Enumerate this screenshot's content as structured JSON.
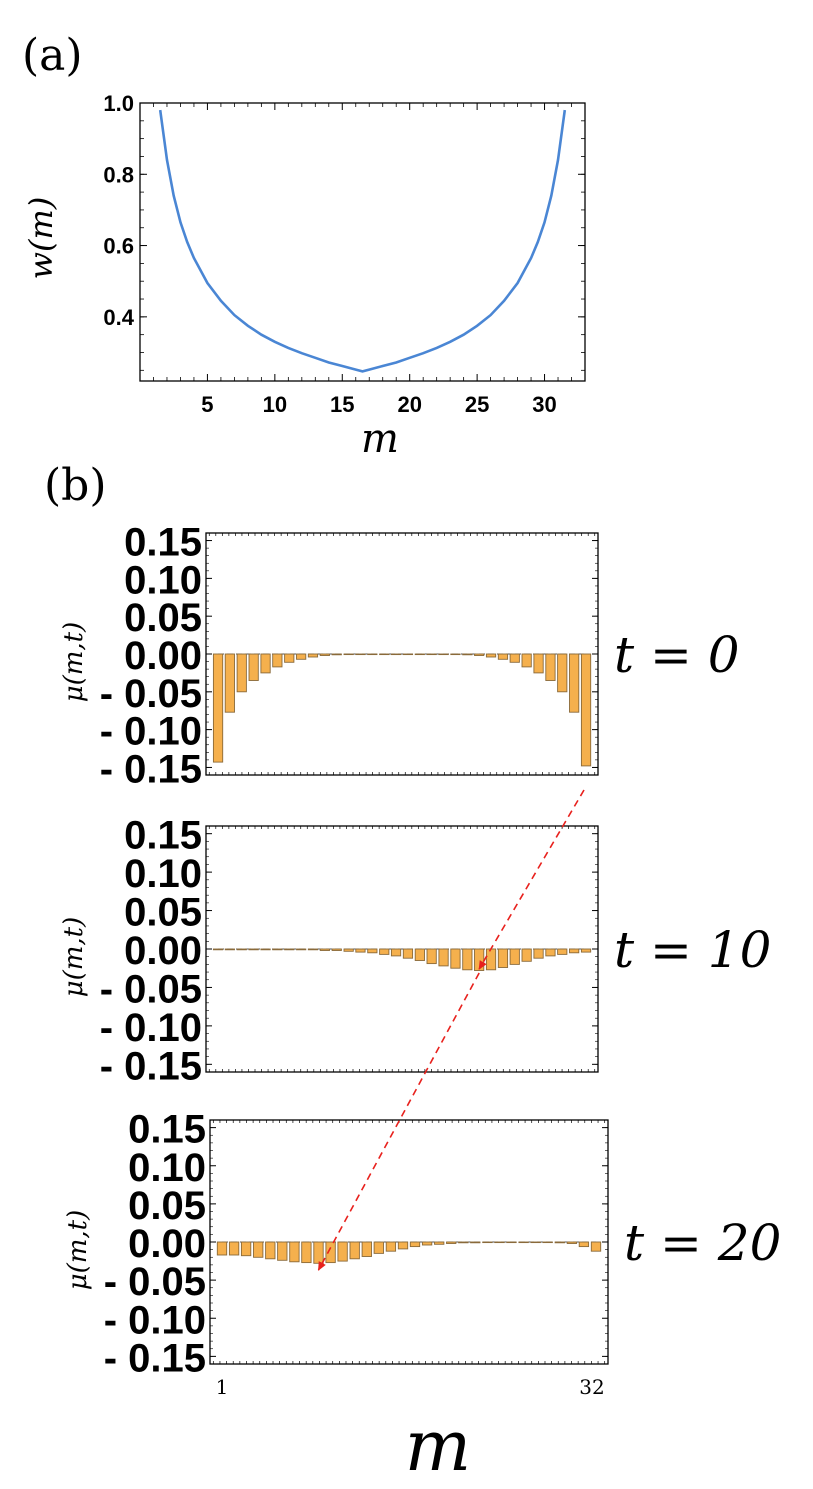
{
  "figure": {
    "panel_a_label": "(a)",
    "panel_b_label": "(b)",
    "bottom_xlabel": "m",
    "bottom_x_ticks": [
      "1",
      "32"
    ]
  },
  "chart_data": [
    {
      "type": "line",
      "panel": "(a)",
      "xlabel": "m",
      "ylabel": "w(m)",
      "xlim": [
        0,
        33
      ],
      "ylim": [
        0.22,
        1.0
      ],
      "x_ticks": [
        5,
        10,
        15,
        20,
        25,
        30
      ],
      "y_ticks": [
        "0.4",
        "0.6",
        "0.8",
        "1.0"
      ],
      "grid": false,
      "color": "#4a86d4",
      "series": [
        {
          "x": [
            1.5,
            2,
            2.5,
            3,
            3.5,
            4,
            5,
            6,
            7,
            8,
            9,
            10,
            11,
            12,
            13,
            14,
            15,
            16,
            16.5,
            17,
            18,
            19,
            20,
            21,
            22,
            23,
            24,
            25,
            26,
            27,
            28,
            29,
            29.5,
            30,
            30.5,
            31,
            31.5
          ],
          "y": [
            0.98,
            0.84,
            0.74,
            0.665,
            0.61,
            0.565,
            0.495,
            0.445,
            0.405,
            0.375,
            0.35,
            0.33,
            0.313,
            0.298,
            0.285,
            0.272,
            0.262,
            0.252,
            0.247,
            0.252,
            0.262,
            0.272,
            0.285,
            0.298,
            0.313,
            0.33,
            0.35,
            0.375,
            0.405,
            0.445,
            0.495,
            0.565,
            0.61,
            0.665,
            0.74,
            0.84,
            0.98
          ]
        }
      ]
    },
    {
      "type": "bar",
      "panel": "(b)",
      "ylabel": "μ(m,t)",
      "annotation": "t = 0",
      "y_ticks": [
        "0.15",
        "0.10",
        "0.05",
        "0.00",
        "- 0.05",
        "- 0.10",
        "- 0.15"
      ],
      "ylim": [
        -0.16,
        0.16
      ],
      "categories": [
        1,
        2,
        3,
        4,
        5,
        6,
        7,
        8,
        9,
        10,
        11,
        12,
        13,
        14,
        15,
        16,
        17,
        18,
        19,
        20,
        21,
        22,
        23,
        24,
        25,
        26,
        27,
        28,
        29,
        30,
        31,
        32
      ],
      "values": [
        -0.143,
        -0.077,
        -0.05,
        -0.035,
        -0.025,
        -0.017,
        -0.011,
        -0.007,
        -0.004,
        -0.002,
        -0.001,
        -0.0005,
        0,
        0,
        0,
        0,
        0,
        0,
        0,
        0,
        -0.0005,
        -0.001,
        -0.002,
        -0.004,
        -0.007,
        -0.011,
        -0.017,
        -0.025,
        -0.035,
        -0.05,
        -0.077,
        -0.148
      ]
    },
    {
      "type": "bar",
      "panel": "(b)",
      "ylabel": "μ(m,t)",
      "annotation": "t = 10",
      "y_ticks": [
        "0.15",
        "0.10",
        "0.05",
        "0.00",
        "- 0.05",
        "- 0.10",
        "- 0.15"
      ],
      "ylim": [
        -0.16,
        0.16
      ],
      "categories": [
        1,
        2,
        3,
        4,
        5,
        6,
        7,
        8,
        9,
        10,
        11,
        12,
        13,
        14,
        15,
        16,
        17,
        18,
        19,
        20,
        21,
        22,
        23,
        24,
        25,
        26,
        27,
        28,
        29,
        30,
        31,
        32
      ],
      "values": [
        -0.001,
        -0.001,
        -0.001,
        -0.001,
        -0.001,
        -0.001,
        -0.001,
        -0.001,
        -0.001,
        -0.002,
        -0.002,
        -0.003,
        -0.004,
        -0.005,
        -0.007,
        -0.009,
        -0.012,
        -0.015,
        -0.019,
        -0.022,
        -0.025,
        -0.027,
        -0.028,
        -0.027,
        -0.024,
        -0.02,
        -0.016,
        -0.012,
        -0.009,
        -0.007,
        -0.005,
        -0.004
      ]
    },
    {
      "type": "bar",
      "panel": "(b)",
      "ylabel": "μ(m,t)",
      "annotation": "t = 20",
      "y_ticks": [
        "0.15",
        "0.10",
        "0.05",
        "0.00",
        "- 0.05",
        "- 0.10",
        "- 0.15"
      ],
      "ylim": [
        -0.16,
        0.16
      ],
      "xlabel": "m",
      "x_ticks": [
        "1",
        "32"
      ],
      "categories": [
        1,
        2,
        3,
        4,
        5,
        6,
        7,
        8,
        9,
        10,
        11,
        12,
        13,
        14,
        15,
        16,
        17,
        18,
        19,
        20,
        21,
        22,
        23,
        24,
        25,
        26,
        27,
        28,
        29,
        30,
        31,
        32
      ],
      "values": [
        -0.017,
        -0.017,
        -0.018,
        -0.02,
        -0.022,
        -0.024,
        -0.026,
        -0.027,
        -0.028,
        -0.027,
        -0.025,
        -0.022,
        -0.019,
        -0.015,
        -0.012,
        -0.009,
        -0.006,
        -0.004,
        -0.003,
        -0.002,
        -0.001,
        -0.001,
        -0.0005,
        0,
        0,
        0,
        0,
        0,
        -0.001,
        -0.002,
        -0.006,
        -0.012
      ]
    }
  ],
  "colors": {
    "line": "#4a86d4",
    "bar_fill": "#f5b04d",
    "bar_stroke": "#8a6a3a",
    "arrow": "#e8211d"
  }
}
